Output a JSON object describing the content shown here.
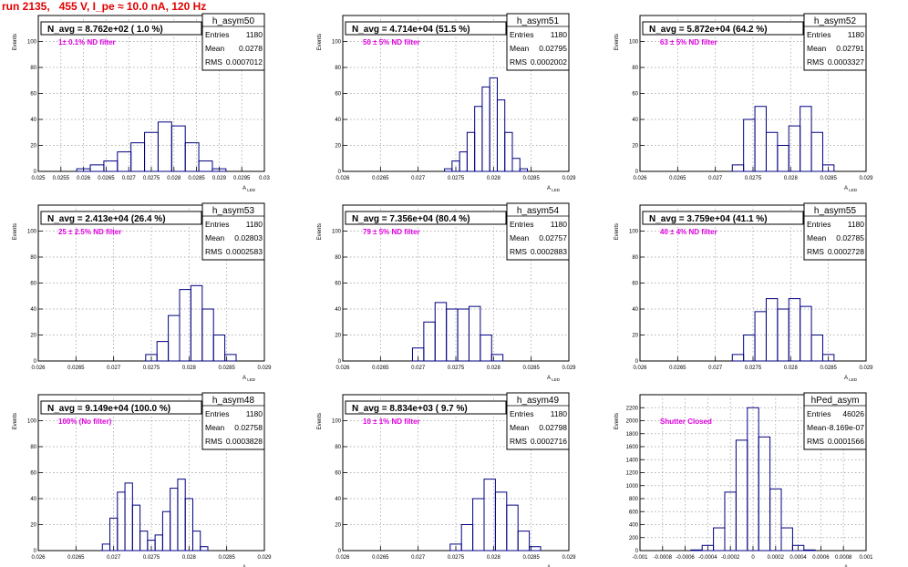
{
  "page": {
    "title": "run 2135,   455 V, I_pe ≈ 10.0 nA, 120 Hz"
  },
  "labels": {
    "stats_entries": "Entries",
    "stats_mean": "Mean",
    "stats_rms": "RMS",
    "yaxis_title": "Events",
    "xaxis_title": "A",
    "xaxis_title_sub": "LED"
  },
  "colors": {
    "histogram_line": "#000080",
    "annotation": "#e000e0",
    "title_red": "#e00000"
  },
  "chart_data": [
    {
      "type": "bar",
      "histogram": "h_asym50",
      "title": "N_avg = 8.762e+02 ( 1.0 %)",
      "annotation": "1± 0.1% ND filter",
      "stats": {
        "entries": "1180",
        "mean": "0.0278",
        "rms": "0.0007012"
      },
      "xlim": [
        0.025,
        0.03
      ],
      "ylim": [
        0,
        120
      ],
      "xticks": [
        "0.025",
        "0.0255",
        "0.026",
        "0.0265",
        "0.027",
        "0.0275",
        "0.028",
        "0.0285",
        "0.029",
        "0.0295",
        "0.03"
      ],
      "yticks": [
        "0",
        "20",
        "40",
        "60",
        "80",
        "100"
      ],
      "x": [
        0.026,
        0.0263,
        0.0266,
        0.0269,
        0.0272,
        0.0275,
        0.0278,
        0.0281,
        0.0284,
        0.0287,
        0.029
      ],
      "values": [
        2,
        5,
        8,
        15,
        22,
        30,
        38,
        35,
        22,
        8,
        2
      ]
    },
    {
      "type": "bar",
      "histogram": "h_asym51",
      "title": "N_avg = 4.714e+04 (51.5 %)",
      "annotation": "50 ± 5% ND filter",
      "stats": {
        "entries": "1180",
        "mean": "0.02795",
        "rms": "0.0002002"
      },
      "xlim": [
        0.026,
        0.029
      ],
      "ylim": [
        0,
        120
      ],
      "xticks": [
        "0.026",
        "0.0265",
        "0.027",
        "0.0275",
        "0.028",
        "0.0285",
        "0.029"
      ],
      "yticks": [
        "0",
        "20",
        "40",
        "60",
        "80",
        "100"
      ],
      "x": [
        0.0274,
        0.0275,
        0.0276,
        0.0277,
        0.0278,
        0.0279,
        0.028,
        0.0281,
        0.0282,
        0.0283,
        0.0284
      ],
      "values": [
        2,
        8,
        15,
        30,
        50,
        65,
        72,
        55,
        30,
        10,
        2
      ]
    },
    {
      "type": "bar",
      "histogram": "h_asym52",
      "title": "N_avg = 5.872e+04 (64.2 %)",
      "annotation": "63 ± 5% ND filter",
      "stats": {
        "entries": "1180",
        "mean": "0.02791",
        "rms": "0.0003327"
      },
      "xlim": [
        0.026,
        0.029
      ],
      "ylim": [
        0,
        120
      ],
      "xticks": [
        "0.026",
        "0.0265",
        "0.027",
        "0.0275",
        "0.028",
        "0.0285",
        "0.029"
      ],
      "yticks": [
        "0",
        "20",
        "40",
        "60",
        "80",
        "100"
      ],
      "x": [
        0.0273,
        0.02745,
        0.0276,
        0.02775,
        0.0279,
        0.02805,
        0.0282,
        0.02835,
        0.0285
      ],
      "values": [
        5,
        40,
        50,
        30,
        20,
        35,
        50,
        30,
        5
      ]
    },
    {
      "type": "bar",
      "histogram": "h_asym53",
      "title": "N_avg = 2.413e+04 (26.4 %)",
      "annotation": "25 ± 2.5% ND filter",
      "stats": {
        "entries": "1180",
        "mean": "0.02803",
        "rms": "0.0002583"
      },
      "xlim": [
        0.026,
        0.029
      ],
      "ylim": [
        0,
        120
      ],
      "xticks": [
        "0.026",
        "0.0265",
        "0.027",
        "0.0275",
        "0.028",
        "0.0285",
        "0.029"
      ],
      "yticks": [
        "0",
        "20",
        "40",
        "60",
        "80",
        "100"
      ],
      "x": [
        0.0275,
        0.02765,
        0.0278,
        0.02795,
        0.0281,
        0.02825,
        0.0284,
        0.02855
      ],
      "values": [
        5,
        15,
        35,
        55,
        58,
        40,
        20,
        5
      ]
    },
    {
      "type": "bar",
      "histogram": "h_asym54",
      "title": "N_avg = 7.356e+04 (80.4 %)",
      "annotation": "79 ± 5% ND filter",
      "stats": {
        "entries": "1180",
        "mean": "0.02757",
        "rms": "0.0002883"
      },
      "xlim": [
        0.026,
        0.029
      ],
      "ylim": [
        0,
        120
      ],
      "xticks": [
        "0.026",
        "0.0265",
        "0.027",
        "0.0275",
        "0.028",
        "0.0285",
        "0.029"
      ],
      "yticks": [
        "0",
        "20",
        "40",
        "60",
        "80",
        "100"
      ],
      "x": [
        0.027,
        0.02715,
        0.0273,
        0.02745,
        0.0276,
        0.02775,
        0.0279,
        0.02805
      ],
      "values": [
        10,
        30,
        45,
        40,
        40,
        42,
        20,
        5
      ]
    },
    {
      "type": "bar",
      "histogram": "h_asym55",
      "title": "N_avg = 3.759e+04 (41.1 %)",
      "annotation": "40 ± 4% ND filter",
      "stats": {
        "entries": "1180",
        "mean": "0.02785",
        "rms": "0.0002728"
      },
      "xlim": [
        0.026,
        0.029
      ],
      "ylim": [
        0,
        120
      ],
      "xticks": [
        "0.026",
        "0.0265",
        "0.027",
        "0.0275",
        "0.028",
        "0.0285",
        "0.029"
      ],
      "yticks": [
        "0",
        "20",
        "40",
        "60",
        "80",
        "100"
      ],
      "x": [
        0.0273,
        0.02745,
        0.0276,
        0.02775,
        0.0279,
        0.02805,
        0.0282,
        0.02835,
        0.0285
      ],
      "values": [
        5,
        20,
        38,
        48,
        40,
        48,
        42,
        20,
        5
      ]
    },
    {
      "type": "bar",
      "histogram": "h_asym48",
      "title": "N_avg = 9.149e+04 (100.0 %)",
      "annotation": "100% (No filter)",
      "stats": {
        "entries": "1180",
        "mean": "0.02758",
        "rms": "0.0003828"
      },
      "xlim": [
        0.026,
        0.029
      ],
      "ylim": [
        0,
        120
      ],
      "xticks": [
        "0.026",
        "0.0265",
        "0.027",
        "0.0275",
        "0.028",
        "0.0285",
        "0.029"
      ],
      "yticks": [
        "0",
        "20",
        "40",
        "60",
        "80",
        "100"
      ],
      "x": [
        0.0269,
        0.027,
        0.0271,
        0.0272,
        0.0273,
        0.0274,
        0.0275,
        0.0276,
        0.0277,
        0.0278,
        0.0279,
        0.028,
        0.0281,
        0.0282
      ],
      "values": [
        5,
        25,
        45,
        52,
        35,
        15,
        8,
        12,
        30,
        48,
        55,
        40,
        15,
        3
      ]
    },
    {
      "type": "bar",
      "histogram": "h_asym49",
      "title": "N_avg = 8.834e+03 ( 9.7 %)",
      "annotation": "10 ± 1% ND filter",
      "stats": {
        "entries": "1180",
        "mean": "0.02798",
        "rms": "0.0002716"
      },
      "xlim": [
        0.026,
        0.029
      ],
      "ylim": [
        0,
        120
      ],
      "xticks": [
        "0.026",
        "0.0265",
        "0.027",
        "0.0275",
        "0.028",
        "0.0285",
        "0.029"
      ],
      "yticks": [
        "0",
        "20",
        "40",
        "60",
        "80",
        "100"
      ],
      "x": [
        0.0275,
        0.02765,
        0.0278,
        0.02795,
        0.0281,
        0.02825,
        0.0284,
        0.02855
      ],
      "values": [
        5,
        20,
        40,
        55,
        45,
        35,
        15,
        3
      ]
    },
    {
      "type": "bar",
      "histogram": "hPed_asym",
      "title": "",
      "annotation": "Shutter Closed",
      "stats": {
        "entries": "46026",
        "mean": "-8.169e-07",
        "rms": "0.0001566"
      },
      "xlim": [
        -0.001,
        0.001
      ],
      "ylim": [
        0,
        2400
      ],
      "xticks": [
        "-0.001",
        "-0.0008",
        "-0.0006",
        "-0.0004",
        "-0.0002",
        "0",
        "0.0002",
        "0.0004",
        "0.0006",
        "0.0008",
        "0.001"
      ],
      "yticks": [
        "0",
        "200",
        "400",
        "600",
        "800",
        "1000",
        "1200",
        "1400",
        "1600",
        "1800",
        "2000",
        "2200"
      ],
      "x": [
        -0.0005,
        -0.0004,
        -0.0003,
        -0.0002,
        -0.0001,
        0.0,
        0.0001,
        0.0002,
        0.0003,
        0.0004,
        0.0005
      ],
      "values": [
        10,
        80,
        350,
        900,
        1700,
        2200,
        1750,
        950,
        350,
        80,
        10
      ]
    }
  ]
}
